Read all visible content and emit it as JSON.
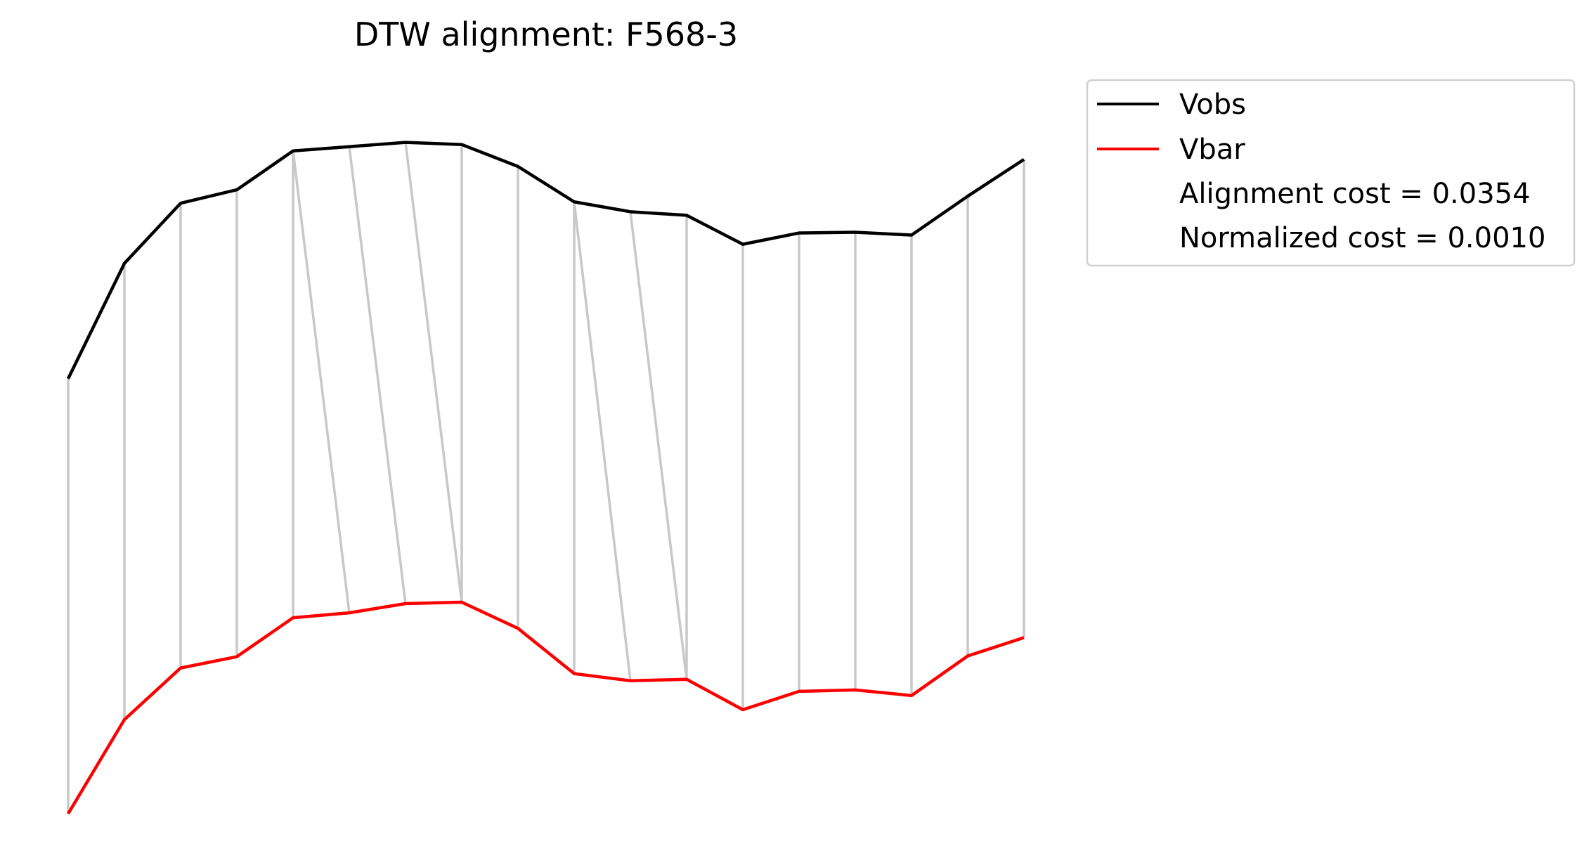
{
  "chart_data": {
    "type": "line",
    "title": "DTW alignment: F568-3",
    "xlabel": "",
    "ylabel": "",
    "axes_visible": false,
    "grid": false,
    "legend_position": "outside-top-right",
    "x": [
      0,
      1,
      2,
      3,
      4,
      5,
      6,
      7,
      8,
      9,
      10,
      11,
      12,
      13,
      14,
      15,
      16,
      17
    ],
    "ylim": [
      0,
      1.05
    ],
    "series": [
      {
        "name": "Vobs",
        "color": "#000000",
        "values": [
          0.615,
          0.778,
          0.863,
          0.882,
          0.937,
          0.943,
          0.949,
          0.946,
          0.915,
          0.865,
          0.851,
          0.846,
          0.805,
          0.821,
          0.822,
          0.818,
          0.873,
          0.925
        ]
      },
      {
        "name": "Vbar",
        "color": "#ff0000",
        "values": [
          0.0,
          0.133,
          0.206,
          0.222,
          0.277,
          0.284,
          0.297,
          0.299,
          0.262,
          0.198,
          0.188,
          0.19,
          0.147,
          0.173,
          0.175,
          0.167,
          0.223,
          0.249
        ]
      }
    ],
    "alignment_color": "#c8c8c8",
    "alignment_pairs": [
      [
        0,
        0
      ],
      [
        1,
        1
      ],
      [
        2,
        2
      ],
      [
        3,
        3
      ],
      [
        4,
        4
      ],
      [
        4,
        5
      ],
      [
        5,
        6
      ],
      [
        6,
        7
      ],
      [
        7,
        7
      ],
      [
        8,
        8
      ],
      [
        9,
        9
      ],
      [
        9,
        10
      ],
      [
        10,
        11
      ],
      [
        11,
        11
      ],
      [
        12,
        12
      ],
      [
        13,
        13
      ],
      [
        14,
        14
      ],
      [
        15,
        15
      ],
      [
        16,
        16
      ],
      [
        17,
        17
      ]
    ],
    "legend_entries": [
      "Vobs",
      "Vbar",
      "Alignment cost = 0.0354",
      "Normalized cost = 0.0010"
    ]
  }
}
